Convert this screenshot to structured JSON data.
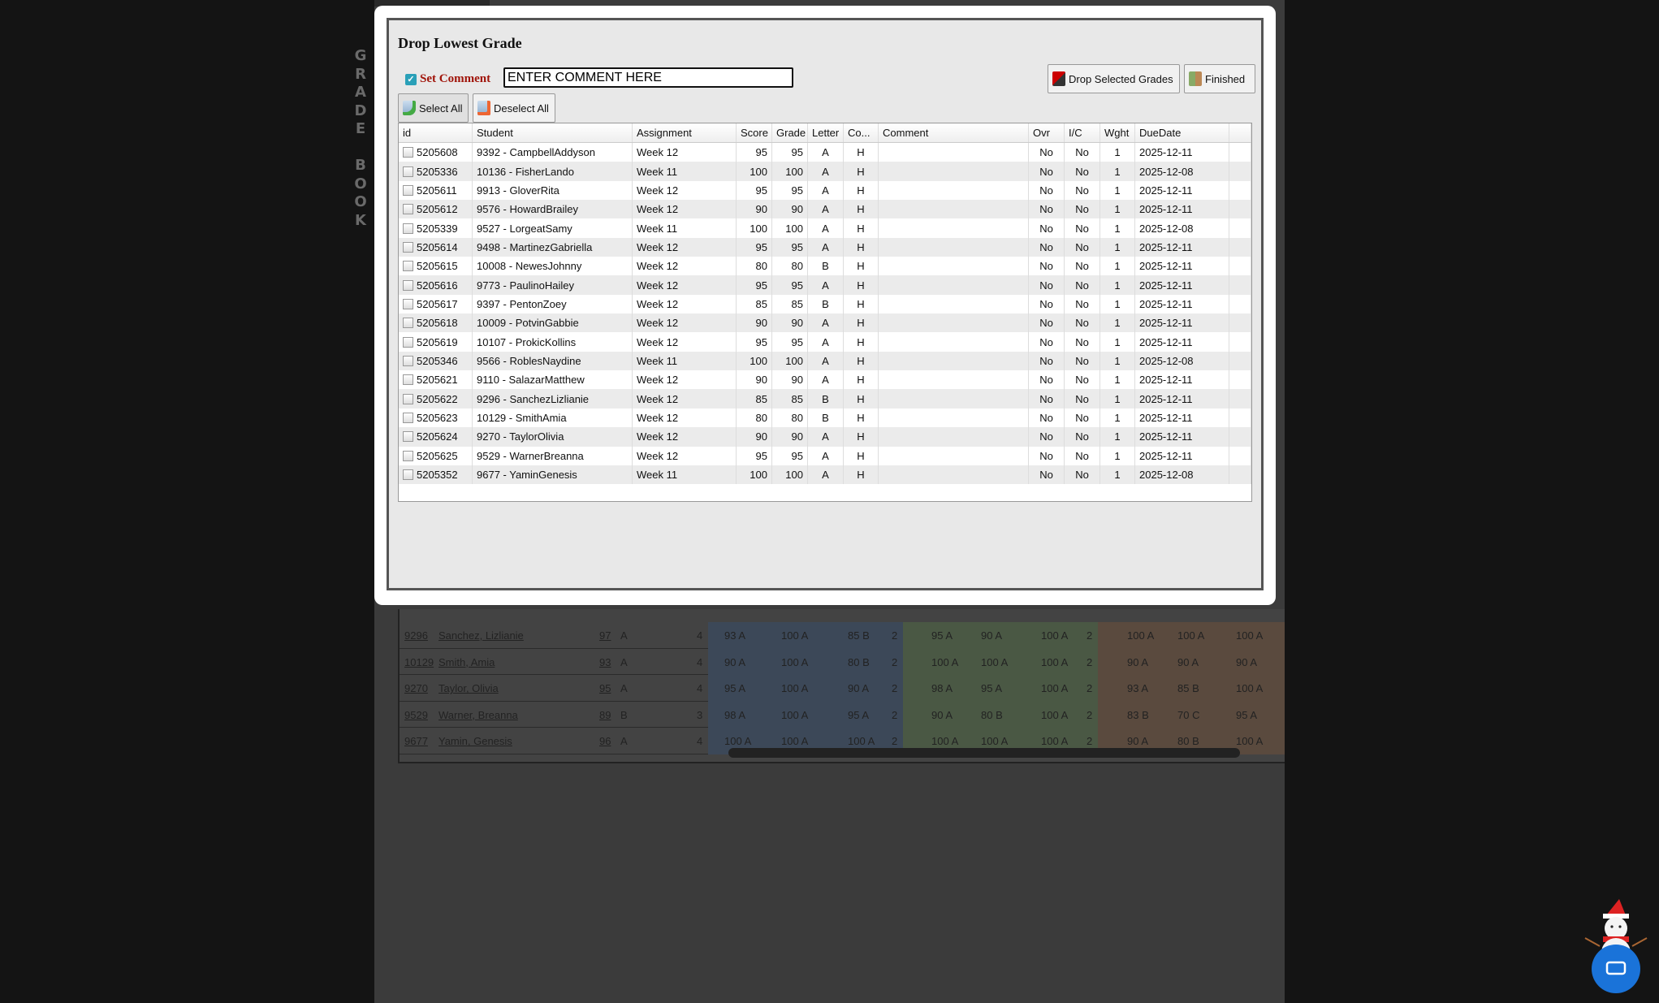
{
  "background": {
    "vertical_label": [
      "G",
      "R",
      "A",
      "D",
      "E",
      "",
      "B",
      "O",
      "O",
      "K"
    ],
    "rows": [
      {
        "id": "9296",
        "name": "Sanchez, Lizlianie",
        "avg": "97",
        "letter": "A",
        "count": "4",
        "blue": [
          "93 A",
          "100 A",
          "85 B",
          "2"
        ],
        "green": [
          "95 A",
          "90 A",
          "100 A",
          "2"
        ],
        "brown": [
          "100 A",
          "100 A",
          "100 A"
        ]
      },
      {
        "id": "10129",
        "name": "Smith, Amia",
        "avg": "93",
        "letter": "A",
        "count": "4",
        "blue": [
          "90 A",
          "100 A",
          "80 B",
          "2"
        ],
        "green": [
          "100 A",
          "100 A",
          "100 A",
          "2"
        ],
        "brown": [
          "90 A",
          "90 A",
          "90 A"
        ]
      },
      {
        "id": "9270",
        "name": "Taylor, Olivia",
        "avg": "95",
        "letter": "A",
        "count": "4",
        "blue": [
          "95 A",
          "100 A",
          "90 A",
          "2"
        ],
        "green": [
          "98 A",
          "95 A",
          "100 A",
          "2"
        ],
        "brown": [
          "93 A",
          "85 B",
          "100 A"
        ]
      },
      {
        "id": "9529",
        "name": "Warner, Breanna",
        "avg": "89",
        "letter": "B",
        "count": "3",
        "blue": [
          "98 A",
          "100 A",
          "95 A",
          "2"
        ],
        "green": [
          "90 A",
          "80 B",
          "100 A",
          "2"
        ],
        "brown": [
          "83 B",
          "70 C",
          "95 A"
        ]
      },
      {
        "id": "9677",
        "name": "Yamin, Genesis",
        "avg": "96",
        "letter": "A",
        "count": "4",
        "blue": [
          "100 A",
          "100 A",
          "100 A",
          "2"
        ],
        "green": [
          "100 A",
          "100 A",
          "100 A",
          "2"
        ],
        "brown": [
          "90 A",
          "80 B",
          "100 A"
        ]
      }
    ]
  },
  "modal": {
    "title": "Drop Lowest Grade",
    "set_comment_label": "Set Comment",
    "set_comment_checked": true,
    "comment_value": "ENTER COMMENT HERE",
    "drop_button": "Drop Selected Grades",
    "finished_button": "Finished",
    "select_all": "Select All",
    "deselect_all": "Deselect All",
    "columns": [
      "id",
      "Student",
      "Assignment",
      "Score",
      "Grade",
      "Letter",
      "Co...",
      "Comment",
      "Ovr",
      "I/C",
      "Wght",
      "DueDate",
      ""
    ],
    "rows": [
      [
        "5205608",
        "9392 - CampbellAddyson",
        "Week 12",
        "95",
        "95",
        "A",
        "H",
        "",
        "No",
        "No",
        "1",
        "2025-12-11"
      ],
      [
        "5205336",
        "10136 - FisherLando",
        "Week 11",
        "100",
        "100",
        "A",
        "H",
        "",
        "No",
        "No",
        "1",
        "2025-12-08"
      ],
      [
        "5205611",
        "9913 - GloverRita",
        "Week 12",
        "95",
        "95",
        "A",
        "H",
        "",
        "No",
        "No",
        "1",
        "2025-12-11"
      ],
      [
        "5205612",
        "9576 - HowardBrailey",
        "Week 12",
        "90",
        "90",
        "A",
        "H",
        "",
        "No",
        "No",
        "1",
        "2025-12-11"
      ],
      [
        "5205339",
        "9527 - LorgeatSamy",
        "Week 11",
        "100",
        "100",
        "A",
        "H",
        "",
        "No",
        "No",
        "1",
        "2025-12-08"
      ],
      [
        "5205614",
        "9498 - MartinezGabriella",
        "Week 12",
        "95",
        "95",
        "A",
        "H",
        "",
        "No",
        "No",
        "1",
        "2025-12-11"
      ],
      [
        "5205615",
        "10008 - NewesJohnny",
        "Week 12",
        "80",
        "80",
        "B",
        "H",
        "",
        "No",
        "No",
        "1",
        "2025-12-11"
      ],
      [
        "5205616",
        "9773 - PaulinoHailey",
        "Week 12",
        "95",
        "95",
        "A",
        "H",
        "",
        "No",
        "No",
        "1",
        "2025-12-11"
      ],
      [
        "5205617",
        "9397 - PentonZoey",
        "Week 12",
        "85",
        "85",
        "B",
        "H",
        "",
        "No",
        "No",
        "1",
        "2025-12-11"
      ],
      [
        "5205618",
        "10009 - PotvinGabbie",
        "Week 12",
        "90",
        "90",
        "A",
        "H",
        "",
        "No",
        "No",
        "1",
        "2025-12-11"
      ],
      [
        "5205619",
        "10107 - ProkicKollins",
        "Week 12",
        "95",
        "95",
        "A",
        "H",
        "",
        "No",
        "No",
        "1",
        "2025-12-11"
      ],
      [
        "5205346",
        "9566 - RoblesNaydine",
        "Week 11",
        "100",
        "100",
        "A",
        "H",
        "",
        "No",
        "No",
        "1",
        "2025-12-08"
      ],
      [
        "5205621",
        "9110 - SalazarMatthew",
        "Week 12",
        "90",
        "90",
        "A",
        "H",
        "",
        "No",
        "No",
        "1",
        "2025-12-11"
      ],
      [
        "5205622",
        "9296 - SanchezLizlianie",
        "Week 12",
        "85",
        "85",
        "B",
        "H",
        "",
        "No",
        "No",
        "1",
        "2025-12-11"
      ],
      [
        "5205623",
        "10129 - SmithAmia",
        "Week 12",
        "80",
        "80",
        "B",
        "H",
        "",
        "No",
        "No",
        "1",
        "2025-12-11"
      ],
      [
        "5205624",
        "9270 - TaylorOlivia",
        "Week 12",
        "90",
        "90",
        "A",
        "H",
        "",
        "No",
        "No",
        "1",
        "2025-12-11"
      ],
      [
        "5205625",
        "9529 - WarnerBreanna",
        "Week 12",
        "95",
        "95",
        "A",
        "H",
        "",
        "No",
        "No",
        "1",
        "2025-12-11"
      ],
      [
        "5205352",
        "9677 - YaminGenesis",
        "Week 11",
        "100",
        "100",
        "A",
        "H",
        "",
        "No",
        "No",
        "1",
        "2025-12-08"
      ]
    ]
  },
  "colors": {
    "blue_section": "#3c4858",
    "green_section": "#4a5844",
    "brown_section": "#5a4a3e",
    "accent_red": "#a0140a",
    "chat_blue": "#1a73d9"
  },
  "icons": {
    "drop": "drop-flag-icon",
    "finished": "exit-door-icon",
    "select_all": "page-add-icon",
    "deselect_all": "page-remove-icon",
    "chat": "chat-icon",
    "snowman": "snowman-icon"
  }
}
